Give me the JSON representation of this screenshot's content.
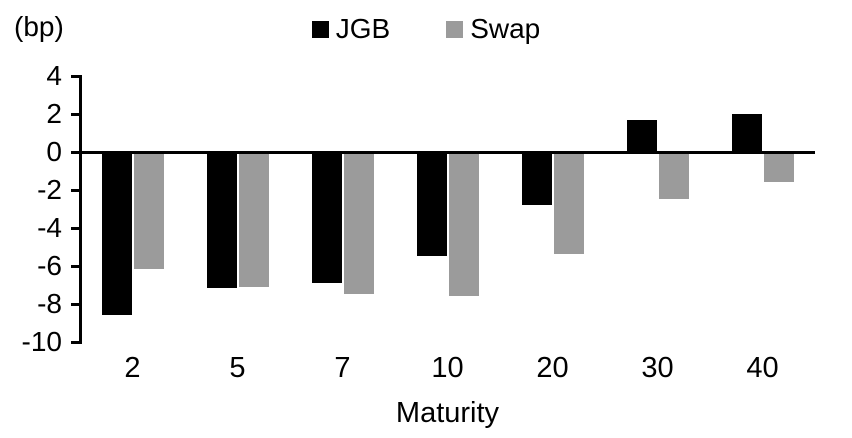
{
  "chart_data": {
    "type": "bar",
    "title": "",
    "unit_label": "(bp)",
    "xlabel": "Maturity",
    "ylabel": "",
    "categories": [
      "2",
      "5",
      "7",
      "10",
      "20",
      "30",
      "40"
    ],
    "series": [
      {
        "name": "JGB",
        "color": "#000000",
        "values": [
          -8.5,
          -7.1,
          -6.8,
          -5.4,
          -2.7,
          1.7,
          2.0
        ]
      },
      {
        "name": "Swap",
        "color": "#9b9b9b",
        "values": [
          -6.1,
          -7.0,
          -7.4,
          -7.5,
          -5.3,
          -2.4,
          -1.5
        ]
      }
    ],
    "y_ticks": [
      4,
      2,
      0,
      -2,
      -4,
      -6,
      -8,
      -10
    ],
    "ylim": [
      -10,
      4
    ],
    "grid": false,
    "legend_position": "top-center",
    "axis_color": "#000000",
    "background": "#ffffff"
  }
}
